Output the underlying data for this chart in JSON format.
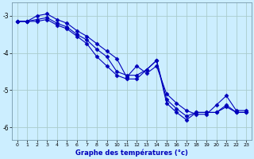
{
  "title": "",
  "xlabel": "Graphe des températures (°c)",
  "ylabel": "",
  "bg_color": "#cceeff",
  "line_color": "#0000bb",
  "grid_color": "#aacccc",
  "xlim": [
    -0.5,
    23.5
  ],
  "ylim": [
    -6.35,
    -2.65
  ],
  "yticks": [
    -6,
    -5,
    -4,
    -3
  ],
  "xticks": [
    0,
    1,
    2,
    3,
    4,
    5,
    6,
    7,
    8,
    9,
    10,
    11,
    12,
    13,
    14,
    15,
    16,
    17,
    18,
    19,
    20,
    21,
    22,
    23
  ],
  "line1_x": [
    0,
    1,
    2,
    3,
    4,
    5,
    6,
    7,
    8,
    9,
    10,
    11,
    12,
    13,
    14,
    15,
    16,
    17,
    18,
    19,
    20,
    21,
    22,
    23
  ],
  "line1_y": [
    -3.15,
    -3.15,
    -3.0,
    -2.95,
    -3.1,
    -3.2,
    -3.4,
    -3.55,
    -3.75,
    -3.95,
    -4.15,
    -4.65,
    -4.35,
    -4.55,
    -4.35,
    -5.1,
    -5.35,
    -5.55,
    -5.65,
    -5.65,
    -5.4,
    -5.15,
    -5.55,
    -5.55
  ],
  "line2_x": [
    0,
    1,
    2,
    3,
    4,
    5,
    6,
    7,
    8,
    9,
    10,
    11,
    12,
    13,
    14,
    15,
    16,
    17,
    18,
    19,
    20,
    21,
    22,
    23
  ],
  "line2_y": [
    -3.15,
    -3.15,
    -3.1,
    -3.05,
    -3.2,
    -3.3,
    -3.5,
    -3.65,
    -3.9,
    -4.1,
    -4.5,
    -4.6,
    -4.6,
    -4.45,
    -4.2,
    -5.25,
    -5.5,
    -5.7,
    -5.6,
    -5.6,
    -5.6,
    -5.4,
    -5.6,
    -5.6
  ],
  "line3_x": [
    0,
    1,
    2,
    3,
    4,
    5,
    6,
    7,
    8,
    9,
    10,
    11,
    12,
    13,
    14,
    15,
    16,
    17,
    18,
    19,
    20,
    21,
    22,
    23
  ],
  "line3_y": [
    -3.15,
    -3.15,
    -3.15,
    -3.1,
    -3.25,
    -3.35,
    -3.55,
    -3.75,
    -4.1,
    -4.35,
    -4.6,
    -4.7,
    -4.7,
    -4.45,
    -4.2,
    -5.35,
    -5.6,
    -5.8,
    -5.6,
    -5.6,
    -5.6,
    -5.45,
    -5.6,
    -5.6
  ]
}
